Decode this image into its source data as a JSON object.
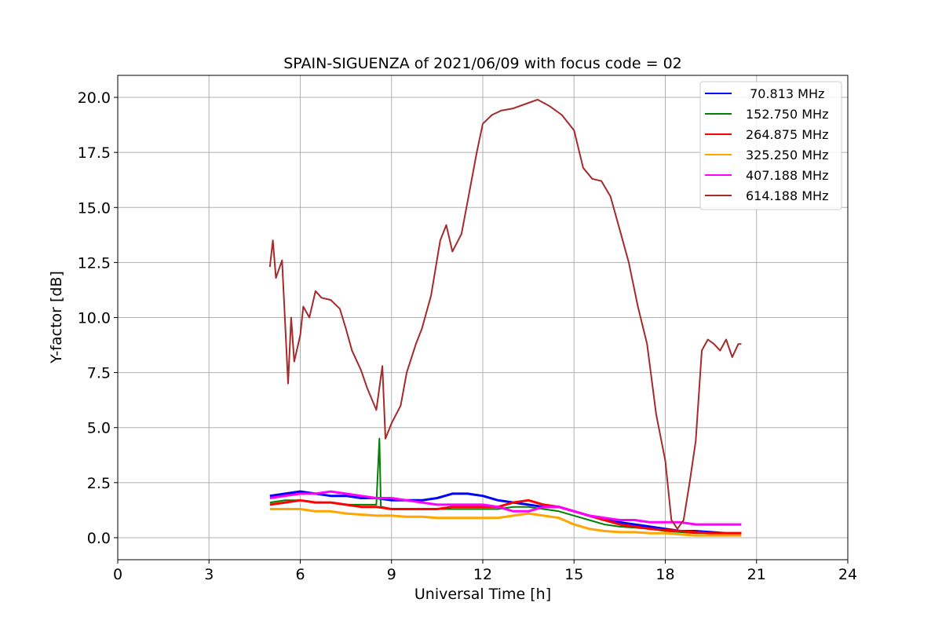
{
  "chart_data": {
    "type": "line",
    "title": "SPAIN-SIGUENZA of 2021/06/09 with focus code = 02",
    "xlabel": "Universal Time [h]",
    "ylabel": "Y-factor [dB]",
    "xlim": [
      0,
      24
    ],
    "ylim": [
      -1.0,
      21.0
    ],
    "xticks": [
      0,
      3,
      6,
      9,
      12,
      15,
      18,
      21,
      24
    ],
    "xtick_labels": [
      "0",
      "3",
      "6",
      "9",
      "12",
      "15",
      "18",
      "21",
      "24"
    ],
    "yticks": [
      0.0,
      2.5,
      5.0,
      7.5,
      10.0,
      12.5,
      15.0,
      17.5,
      20.0
    ],
    "ytick_labels": [
      "0.0",
      "2.5",
      "5.0",
      "7.5",
      "10.0",
      "12.5",
      "15.0",
      "17.5",
      "20.0"
    ],
    "grid": true,
    "legend_position": "top-right",
    "series": [
      {
        "name": " 70.813 MHz",
        "color": "#0000ff",
        "x": [
          5.0,
          5.5,
          6.0,
          6.5,
          7.0,
          7.5,
          8.0,
          8.5,
          9.0,
          9.5,
          10.0,
          10.5,
          11.0,
          11.5,
          12.0,
          12.5,
          13.0,
          13.5,
          14.0,
          14.5,
          15.0,
          15.5,
          16.0,
          16.5,
          17.0,
          17.5,
          18.0,
          18.5,
          19.0,
          19.5,
          20.0,
          20.5
        ],
        "y": [
          1.9,
          2.0,
          2.1,
          2.0,
          1.9,
          1.9,
          1.8,
          1.8,
          1.7,
          1.7,
          1.7,
          1.8,
          2.0,
          2.0,
          1.9,
          1.7,
          1.6,
          1.5,
          1.4,
          1.4,
          1.2,
          1.0,
          0.8,
          0.7,
          0.6,
          0.5,
          0.4,
          0.3,
          0.3,
          0.25,
          0.2,
          0.2
        ]
      },
      {
        "name": "152.750 MHz",
        "color": "#008000",
        "x": [
          5.0,
          5.5,
          6.0,
          6.5,
          7.0,
          7.5,
          8.0,
          8.5,
          8.6,
          8.65,
          8.7,
          9.0,
          9.5,
          10.0,
          10.5,
          11.0,
          11.5,
          12.0,
          12.5,
          13.0,
          13.5,
          14.0,
          14.5,
          15.0,
          15.5,
          16.0,
          16.5,
          17.0,
          17.5,
          18.0,
          18.5,
          19.0,
          19.5,
          20.0,
          20.5
        ],
        "y": [
          1.6,
          1.7,
          1.7,
          1.6,
          1.6,
          1.5,
          1.5,
          1.5,
          4.5,
          1.4,
          1.4,
          1.3,
          1.3,
          1.3,
          1.3,
          1.3,
          1.3,
          1.3,
          1.3,
          1.4,
          1.4,
          1.3,
          1.2,
          1.0,
          0.8,
          0.6,
          0.5,
          0.45,
          0.4,
          0.3,
          0.25,
          0.2,
          0.2,
          0.2,
          0.2
        ]
      },
      {
        "name": "264.875 MHz",
        "color": "#ff0000",
        "x": [
          5.0,
          5.5,
          6.0,
          6.5,
          7.0,
          7.5,
          8.0,
          8.5,
          9.0,
          9.5,
          10.0,
          10.5,
          11.0,
          11.5,
          12.0,
          12.5,
          13.0,
          13.5,
          14.0,
          14.5,
          15.0,
          15.5,
          16.0,
          16.5,
          17.0,
          17.5,
          18.0,
          18.5,
          19.0,
          19.5,
          20.0,
          20.5
        ],
        "y": [
          1.5,
          1.6,
          1.7,
          1.6,
          1.6,
          1.5,
          1.4,
          1.4,
          1.3,
          1.3,
          1.3,
          1.3,
          1.4,
          1.4,
          1.4,
          1.4,
          1.6,
          1.7,
          1.5,
          1.4,
          1.2,
          1.0,
          0.8,
          0.6,
          0.5,
          0.4,
          0.35,
          0.3,
          0.25,
          0.2,
          0.2,
          0.2
        ]
      },
      {
        "name": "325.250 MHz",
        "color": "#ffa500",
        "x": [
          5.0,
          5.5,
          6.0,
          6.5,
          7.0,
          7.5,
          8.0,
          8.5,
          9.0,
          9.5,
          10.0,
          10.5,
          11.0,
          11.5,
          12.0,
          12.5,
          13.0,
          13.5,
          14.0,
          14.5,
          15.0,
          15.5,
          16.0,
          16.5,
          17.0,
          17.5,
          18.0,
          18.5,
          19.0,
          19.5,
          20.0,
          20.5
        ],
        "y": [
          1.3,
          1.3,
          1.3,
          1.2,
          1.2,
          1.1,
          1.05,
          1.0,
          1.0,
          0.95,
          0.95,
          0.9,
          0.9,
          0.9,
          0.9,
          0.9,
          1.0,
          1.1,
          1.0,
          0.9,
          0.6,
          0.4,
          0.3,
          0.25,
          0.25,
          0.2,
          0.2,
          0.15,
          0.1,
          0.1,
          0.1,
          0.1
        ]
      },
      {
        "name": "407.188 MHz",
        "color": "#ff00ff",
        "x": [
          5.0,
          5.5,
          6.0,
          6.5,
          7.0,
          7.5,
          8.0,
          8.5,
          9.0,
          9.5,
          10.0,
          10.5,
          11.0,
          11.5,
          12.0,
          12.5,
          13.0,
          13.5,
          14.0,
          14.5,
          15.0,
          15.5,
          16.0,
          16.5,
          17.0,
          17.5,
          18.0,
          18.5,
          19.0,
          19.5,
          20.0,
          20.5
        ],
        "y": [
          1.8,
          1.9,
          2.0,
          2.0,
          2.1,
          2.0,
          1.9,
          1.8,
          1.8,
          1.7,
          1.6,
          1.5,
          1.5,
          1.5,
          1.5,
          1.4,
          1.2,
          1.2,
          1.4,
          1.4,
          1.2,
          1.0,
          0.9,
          0.8,
          0.8,
          0.7,
          0.7,
          0.7,
          0.6,
          0.6,
          0.6,
          0.6
        ]
      },
      {
        "name": "614.188 MHz",
        "color": "#a52a2a",
        "x": [
          5.0,
          5.1,
          5.2,
          5.4,
          5.6,
          5.7,
          5.8,
          6.0,
          6.1,
          6.3,
          6.5,
          6.7,
          7.0,
          7.3,
          7.5,
          7.7,
          8.0,
          8.2,
          8.5,
          8.7,
          8.8,
          9.0,
          9.3,
          9.5,
          9.8,
          10.0,
          10.3,
          10.6,
          10.8,
          11.0,
          11.3,
          11.6,
          11.8,
          12.0,
          12.3,
          12.6,
          13.0,
          13.4,
          13.8,
          14.2,
          14.6,
          15.0,
          15.3,
          15.6,
          15.9,
          16.2,
          16.5,
          16.8,
          17.1,
          17.4,
          17.7,
          18.0,
          18.2,
          18.4,
          18.6,
          18.8,
          19.0,
          19.2,
          19.4,
          19.6,
          19.8,
          20.0,
          20.2,
          20.4,
          20.5
        ],
        "y": [
          12.3,
          13.5,
          11.8,
          12.6,
          7.0,
          10.0,
          8.0,
          9.2,
          10.5,
          10.0,
          11.2,
          10.9,
          10.8,
          10.4,
          9.5,
          8.5,
          7.6,
          6.8,
          5.8,
          7.8,
          4.5,
          5.2,
          6.0,
          7.5,
          8.8,
          9.5,
          11.0,
          13.5,
          14.2,
          13.0,
          13.8,
          16.0,
          17.5,
          18.8,
          19.2,
          19.4,
          19.5,
          19.7,
          19.9,
          19.6,
          19.2,
          18.5,
          16.8,
          16.3,
          16.2,
          15.5,
          14.0,
          12.5,
          10.5,
          8.8,
          5.6,
          3.5,
          0.8,
          0.4,
          0.8,
          2.5,
          4.4,
          8.5,
          9.0,
          8.8,
          8.5,
          9.0,
          8.2,
          8.8,
          8.8
        ]
      }
    ]
  }
}
